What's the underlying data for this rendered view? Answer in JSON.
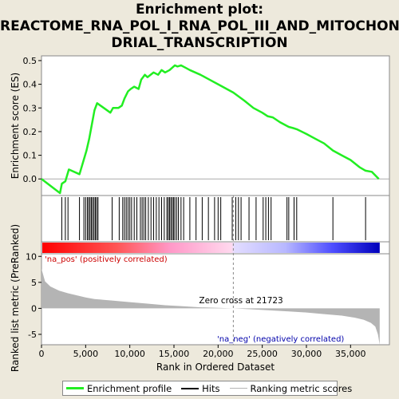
{
  "title_lines": [
    "Enrichment plot:",
    "REACTOME_RNA_POL_I_RNA_POL_III_AND_MITOCHON",
    "DRIAL_TRANSCRIPTION"
  ],
  "colors": {
    "enrichment": "#22ee22",
    "hits": "#000000",
    "metric": "#b4b4b4",
    "pos": "#ff0000",
    "neg": "#0000cc"
  },
  "chart_data": {
    "type": "line",
    "x_range": [
      0,
      39400
    ],
    "xlabel": "Rank in Ordered Dataset",
    "x_ticks": [
      0,
      5000,
      10000,
      15000,
      20000,
      25000,
      30000,
      35000
    ],
    "x_tick_labels": [
      "0",
      "5,000",
      "10,000",
      "15,000",
      "20,000",
      "25,000",
      "30,000",
      "35,000"
    ],
    "es_panel": {
      "ylabel": "Enrichment score (ES)",
      "ylim": [
        -0.07,
        0.52
      ],
      "y_ticks": [
        0.0,
        0.1,
        0.2,
        0.3,
        0.4,
        0.5
      ],
      "y_tick_labels": [
        "0.0",
        "0.1",
        "0.2",
        "0.3",
        "0.4",
        "0.5"
      ],
      "series": [
        {
          "name": "Enrichment profile",
          "x": [
            0,
            2100,
            2300,
            2700,
            3100,
            4300,
            4700,
            5100,
            5400,
            5700,
            6000,
            6300,
            7800,
            8100,
            8700,
            9100,
            9400,
            9800,
            10100,
            10500,
            11000,
            11300,
            11700,
            12000,
            12700,
            13200,
            13600,
            14000,
            14500,
            15100,
            15400,
            15800,
            16300,
            16800,
            18000,
            19000,
            20000,
            21723,
            23000,
            24000,
            25000,
            25600,
            26200,
            27000,
            28000,
            28500,
            28900,
            30000,
            31000,
            32000,
            33000,
            34000,
            35000,
            36000,
            36700,
            37400,
            38200
          ],
          "y": [
            0.0,
            -0.06,
            -0.02,
            -0.01,
            0.04,
            0.02,
            0.07,
            0.12,
            0.17,
            0.23,
            0.29,
            0.32,
            0.28,
            0.3,
            0.3,
            0.31,
            0.34,
            0.37,
            0.38,
            0.39,
            0.38,
            0.42,
            0.44,
            0.43,
            0.45,
            0.44,
            0.46,
            0.45,
            0.46,
            0.48,
            0.475,
            0.48,
            0.47,
            0.46,
            0.44,
            0.42,
            0.4,
            0.365,
            0.33,
            0.3,
            0.28,
            0.265,
            0.26,
            0.24,
            0.22,
            0.215,
            0.21,
            0.19,
            0.17,
            0.15,
            0.12,
            0.1,
            0.08,
            0.05,
            0.035,
            0.03,
            0.0
          ]
        }
      ]
    },
    "hits": [
      2300,
      2700,
      3000,
      4300,
      4800,
      5000,
      5200,
      5350,
      5500,
      5650,
      5800,
      5950,
      6100,
      6250,
      6400,
      8000,
      8800,
      9200,
      9400,
      9600,
      9800,
      10000,
      10200,
      10500,
      10800,
      11200,
      11400,
      11600,
      11800,
      12100,
      12400,
      12700,
      13000,
      13300,
      13600,
      13900,
      14200,
      14350,
      14500,
      14650,
      14800,
      14950,
      15100,
      15300,
      15500,
      15800,
      16100,
      16800,
      17500,
      18200,
      18900,
      19600,
      20000,
      20300,
      21600,
      22000,
      22300,
      22600,
      23500,
      24300,
      25100,
      25400,
      25700,
      26000,
      27800,
      28000,
      28600,
      28900,
      33000,
      36700
    ],
    "metric_panel": {
      "ylabel": "Ranked list metric (PreRanked)",
      "ylim": [
        -7,
        10.5
      ],
      "y_ticks": [
        -5,
        0,
        5,
        10
      ],
      "y_tick_labels": [
        "-5",
        "0",
        "5",
        "10"
      ],
      "series": [
        {
          "name": "Ranking metric scores",
          "x": [
            0,
            400,
            1000,
            2000,
            3000,
            4000,
            5000,
            6000,
            8000,
            10000,
            12000,
            14000,
            16000,
            18000,
            20000,
            21723,
            24000,
            26000,
            28000,
            30000,
            32000,
            34000,
            35500,
            36500,
            37300,
            37800,
            38100,
            38300
          ],
          "y": [
            7.6,
            5.2,
            4.2,
            3.4,
            2.9,
            2.5,
            2.1,
            1.8,
            1.5,
            1.2,
            0.9,
            0.6,
            0.4,
            0.2,
            0.1,
            0.0,
            -0.2,
            -0.4,
            -0.6,
            -0.8,
            -1.1,
            -1.4,
            -1.8,
            -2.2,
            -2.8,
            -3.5,
            -5.0,
            -7.0
          ]
        }
      ],
      "pos_label": "'na_pos' (positively correlated)",
      "neg_label": "'na_neg' (negatively correlated)",
      "zero_cross_label": "Zero cross at 21723",
      "zero_cross": 21723
    },
    "legend": [
      {
        "name": "Enrichment profile"
      },
      {
        "name": "Hits"
      },
      {
        "name": "Ranking metric scores"
      }
    ]
  }
}
